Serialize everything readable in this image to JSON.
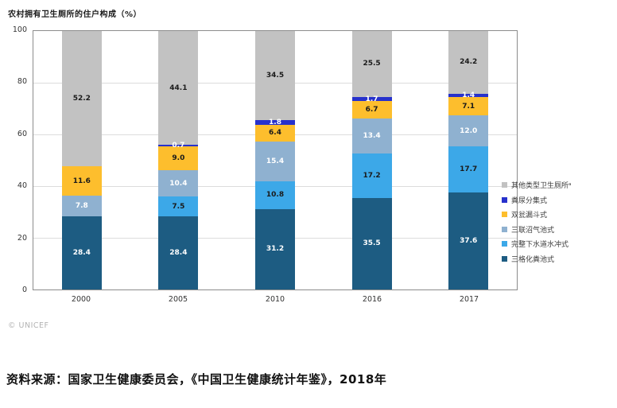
{
  "header": {
    "title": "农村拥有卫生厕所的住户构成（%）"
  },
  "credit": "© UNICEF",
  "source_note": "资料来源：国家卫生健康委员会，《中国卫生健康统计年鉴》，2018年",
  "chart_data": {
    "type": "bar",
    "stacked": true,
    "title": "农村拥有卫生厕所的住户构成（%）",
    "categories": [
      "2000",
      "2005",
      "2010",
      "2016",
      "2017"
    ],
    "series": [
      {
        "name": "三格化粪池式",
        "color": "#1D5C82",
        "label_color": "#ffffff",
        "values": [
          28.4,
          28.4,
          31.2,
          35.5,
          37.6
        ],
        "labels": [
          "28.4",
          "28.4",
          "31.2",
          "35.5",
          "37.6"
        ]
      },
      {
        "name": "完整下水道水冲式",
        "color": "#3CA8E8",
        "label_color": "#1a1a1a",
        "values": [
          null,
          7.5,
          10.8,
          17.2,
          17.7
        ],
        "labels": [
          null,
          "7.5",
          "10.8",
          "17.2",
          "17.7"
        ]
      },
      {
        "name": "三联沼气池式",
        "color": "#8FB1D0",
        "label_color": "#ffffff",
        "values": [
          7.8,
          10.4,
          15.4,
          13.4,
          12.0
        ],
        "labels": [
          "7.8",
          "10.4",
          "15.4",
          "13.4",
          "12.0"
        ]
      },
      {
        "name": "双瓮漏斗式",
        "color": "#FDBE2D",
        "label_color": "#1a1a1a",
        "values": [
          11.6,
          9.0,
          6.4,
          6.7,
          7.1
        ],
        "labels": [
          "11.6",
          "9.0",
          "6.4",
          "6.7",
          "7.1"
        ]
      },
      {
        "name": "粪尿分集式",
        "color": "#2731CC",
        "label_color": "#ffffff",
        "values": [
          null,
          0.7,
          1.8,
          1.7,
          1.4
        ],
        "labels": [
          null,
          "0.7",
          "1.8",
          "1.7",
          "1.4"
        ]
      },
      {
        "name": "其他类型卫生厕所ᵃ",
        "color": "#C2C2C2",
        "label_color": "#1a1a1a",
        "values": [
          52.2,
          44.1,
          34.5,
          25.5,
          24.2
        ],
        "labels": [
          "52.2",
          "44.1",
          "34.5",
          "25.5",
          "24.2"
        ]
      }
    ],
    "ylim": [
      0,
      100
    ],
    "yticks": [
      0,
      20,
      40,
      60,
      80,
      100
    ],
    "grid": true,
    "legend_position": "right",
    "legend_note_superscript": "a"
  }
}
